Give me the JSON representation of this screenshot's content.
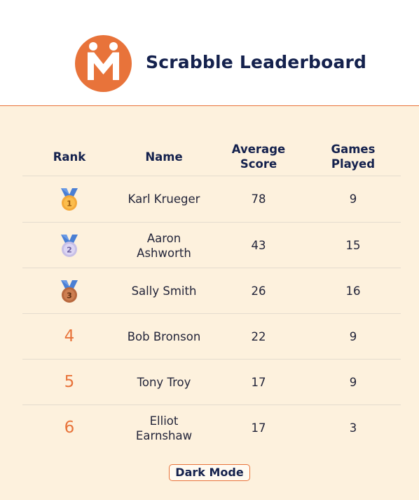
{
  "header": {
    "title": "Scrabble Leaderboard",
    "brand_color": "#e8733a",
    "title_color": "#14214d"
  },
  "table": {
    "columns": [
      {
        "label": "Rank"
      },
      {
        "label": "Name"
      },
      {
        "label": "Average Score"
      },
      {
        "label": "Games Played"
      }
    ],
    "rows": [
      {
        "rank": "1",
        "medal": "gold-medal-icon",
        "name": "Karl Krueger",
        "avg": "78",
        "games": "9"
      },
      {
        "rank": "2",
        "medal": "silver-medal-icon",
        "name": "Aaron Ashworth",
        "avg": "43",
        "games": "15"
      },
      {
        "rank": "3",
        "medal": "bronze-medal-icon",
        "name": "Sally Smith",
        "avg": "26",
        "games": "16"
      },
      {
        "rank": "4",
        "medal": null,
        "name": "Bob Bronson",
        "avg": "22",
        "games": "9"
      },
      {
        "rank": "5",
        "medal": null,
        "name": "Tony Troy",
        "avg": "17",
        "games": "9"
      },
      {
        "rank": "6",
        "medal": null,
        "name": "Elliot Earnshaw",
        "avg": "17",
        "games": "3"
      }
    ]
  },
  "controls": {
    "dark_mode_label": "Dark Mode"
  }
}
